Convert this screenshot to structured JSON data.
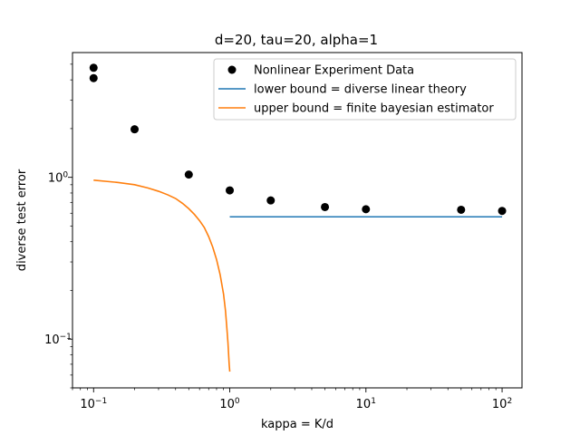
{
  "chart_data": {
    "type": "scatter",
    "title": "d=20, tau=20, alpha=1",
    "xlabel": "kappa = K/d",
    "ylabel": "diverse test error",
    "xscale": "log",
    "yscale": "log",
    "xlim": [
      0.07,
      140
    ],
    "ylim": [
      0.05,
      5.9
    ],
    "grid": false,
    "legend_position": "top-right",
    "x_ticks": [
      {
        "value": 0.1,
        "base": "10",
        "exp": "−1"
      },
      {
        "value": 1,
        "base": "10",
        "exp": "0"
      },
      {
        "value": 10,
        "base": "10",
        "exp": "1"
      },
      {
        "value": 100,
        "base": "10",
        "exp": "2"
      }
    ],
    "y_ticks": [
      {
        "value": 0.1,
        "base": "10",
        "exp": "−1"
      },
      {
        "value": 1,
        "base": "10",
        "exp": "0"
      }
    ],
    "series": [
      {
        "name": "Nonlinear Experiment Data",
        "kind": "scatter",
        "color": "#000000",
        "points": [
          {
            "x": 0.1,
            "y": 4.75
          },
          {
            "x": 0.1,
            "y": 4.1
          },
          {
            "x": 0.2,
            "y": 1.98
          },
          {
            "x": 0.5,
            "y": 1.04
          },
          {
            "x": 1,
            "y": 0.83
          },
          {
            "x": 2,
            "y": 0.72
          },
          {
            "x": 5,
            "y": 0.655
          },
          {
            "x": 10,
            "y": 0.635
          },
          {
            "x": 50,
            "y": 0.63
          },
          {
            "x": 100,
            "y": 0.62
          }
        ]
      },
      {
        "name": "lower bound = diverse linear theory",
        "kind": "line",
        "color": "#1f77b4",
        "points": [
          {
            "x": 1,
            "y": 0.57
          },
          {
            "x": 100,
            "y": 0.57
          }
        ]
      },
      {
        "name": "upper bound = finite bayesian estimator",
        "kind": "line",
        "color": "#ff7f0e",
        "points": [
          {
            "x": 0.1,
            "y": 0.96
          },
          {
            "x": 0.15,
            "y": 0.93
          },
          {
            "x": 0.2,
            "y": 0.9
          },
          {
            "x": 0.25,
            "y": 0.86
          },
          {
            "x": 0.3,
            "y": 0.82
          },
          {
            "x": 0.35,
            "y": 0.78
          },
          {
            "x": 0.4,
            "y": 0.74
          },
          {
            "x": 0.45,
            "y": 0.69
          },
          {
            "x": 0.5,
            "y": 0.64
          },
          {
            "x": 0.55,
            "y": 0.59
          },
          {
            "x": 0.6,
            "y": 0.54
          },
          {
            "x": 0.65,
            "y": 0.49
          },
          {
            "x": 0.7,
            "y": 0.43
          },
          {
            "x": 0.75,
            "y": 0.37
          },
          {
            "x": 0.8,
            "y": 0.31
          },
          {
            "x": 0.85,
            "y": 0.25
          },
          {
            "x": 0.9,
            "y": 0.19
          },
          {
            "x": 0.93,
            "y": 0.15
          },
          {
            "x": 0.95,
            "y": 0.12
          },
          {
            "x": 0.97,
            "y": 0.095
          },
          {
            "x": 0.99,
            "y": 0.07
          },
          {
            "x": 1.0,
            "y": 0.063
          }
        ]
      }
    ]
  }
}
